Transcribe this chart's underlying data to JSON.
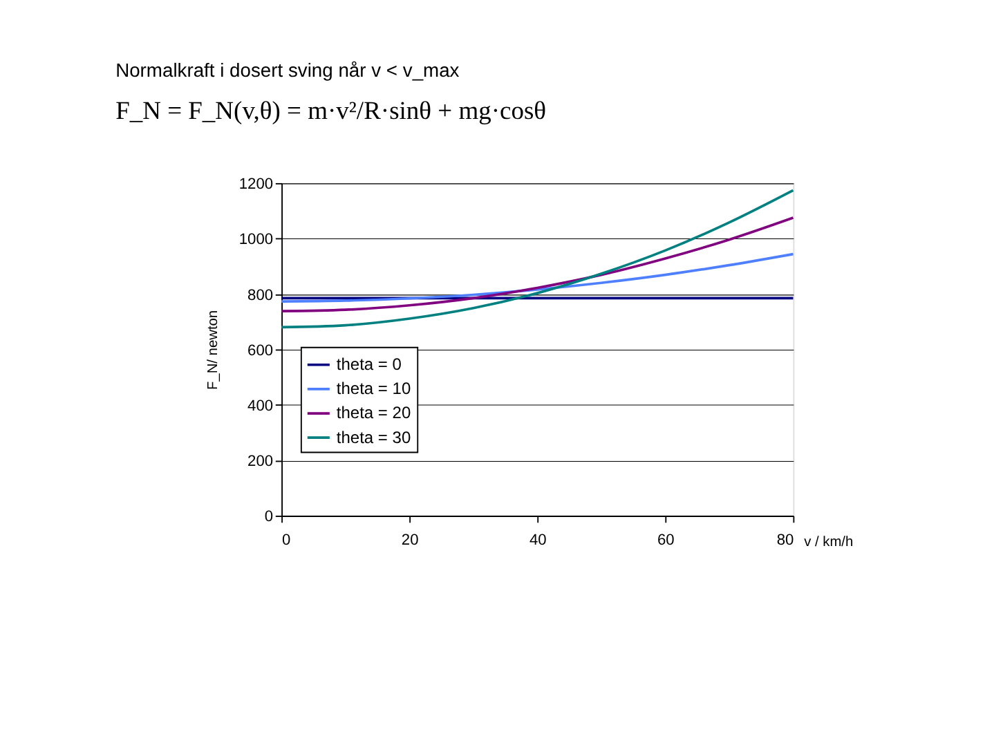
{
  "chart_data": {
    "type": "line",
    "title": "Normalkraft i dosert sving når v < v_max",
    "subtitle": "F_N = F_N(v,θ) = m·v²/R·sinθ + mg·cosθ",
    "xlabel": "v / km/h",
    "ylabel": "F_N/ newton",
    "x": [
      0,
      10,
      20,
      30,
      40,
      50,
      60,
      70,
      80
    ],
    "series": [
      {
        "name": "theta = 0",
        "color": "#000080",
        "values": [
          785,
          785,
          785,
          785,
          785,
          785,
          785,
          785,
          785
        ]
      },
      {
        "name": "theta = 10",
        "color": "#4d7fff",
        "values": [
          773,
          776,
          784,
          797,
          816,
          840,
          869,
          904,
          944
        ]
      },
      {
        "name": "theta = 20",
        "color": "#800080",
        "values": [
          738,
          743,
          759,
          785,
          822,
          869,
          928,
          996,
          1075
        ]
      },
      {
        "name": "theta = 30",
        "color": "#008080",
        "values": [
          680,
          687,
          711,
          749,
          803,
          873,
          957,
          1058,
          1174
        ]
      }
    ],
    "xlim": [
      0,
      80
    ],
    "xticks": [
      0,
      20,
      40,
      60,
      80
    ],
    "ylim": [
      0,
      1200
    ],
    "yticks": [
      0,
      200,
      400,
      600,
      800,
      1000,
      1200
    ],
    "grid": "y",
    "legend": "left",
    "marker": "none",
    "line_style": "solid"
  }
}
